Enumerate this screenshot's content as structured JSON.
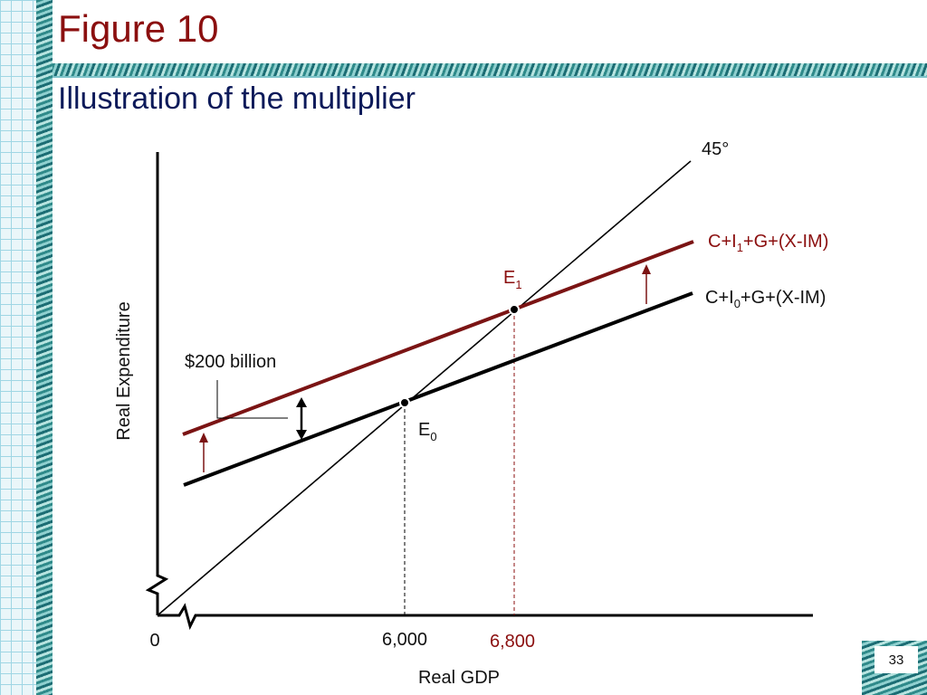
{
  "slide": {
    "title": "Figure 10",
    "subtitle": "Illustration of the multiplier",
    "page_number": "33"
  },
  "diagram": {
    "y_axis_label": "Real Expenditure",
    "x_axis_label": "Real GDP",
    "origin_label": "0",
    "angle_label": "45°",
    "new_line_label": {
      "pre": "C+I",
      "sub": "1",
      "post": "+G+(X-IM)"
    },
    "old_line_label": {
      "pre": "C+I",
      "sub": "0",
      "post": "+G+(X-IM)"
    },
    "e1_label": {
      "base": "E",
      "sub": "1"
    },
    "e0_label": {
      "base": "E",
      "sub": "0"
    },
    "shift_label": "$200 billion",
    "tick_6000": "6,000",
    "tick_6800": "6,800"
  },
  "colors": {
    "title": "#8b0f0f",
    "subtitle": "#0c1a5a",
    "new_schedule": "#7b1414",
    "old_schedule": "#000000",
    "equilibrium_guide_e1": "#8b0f0f"
  }
}
